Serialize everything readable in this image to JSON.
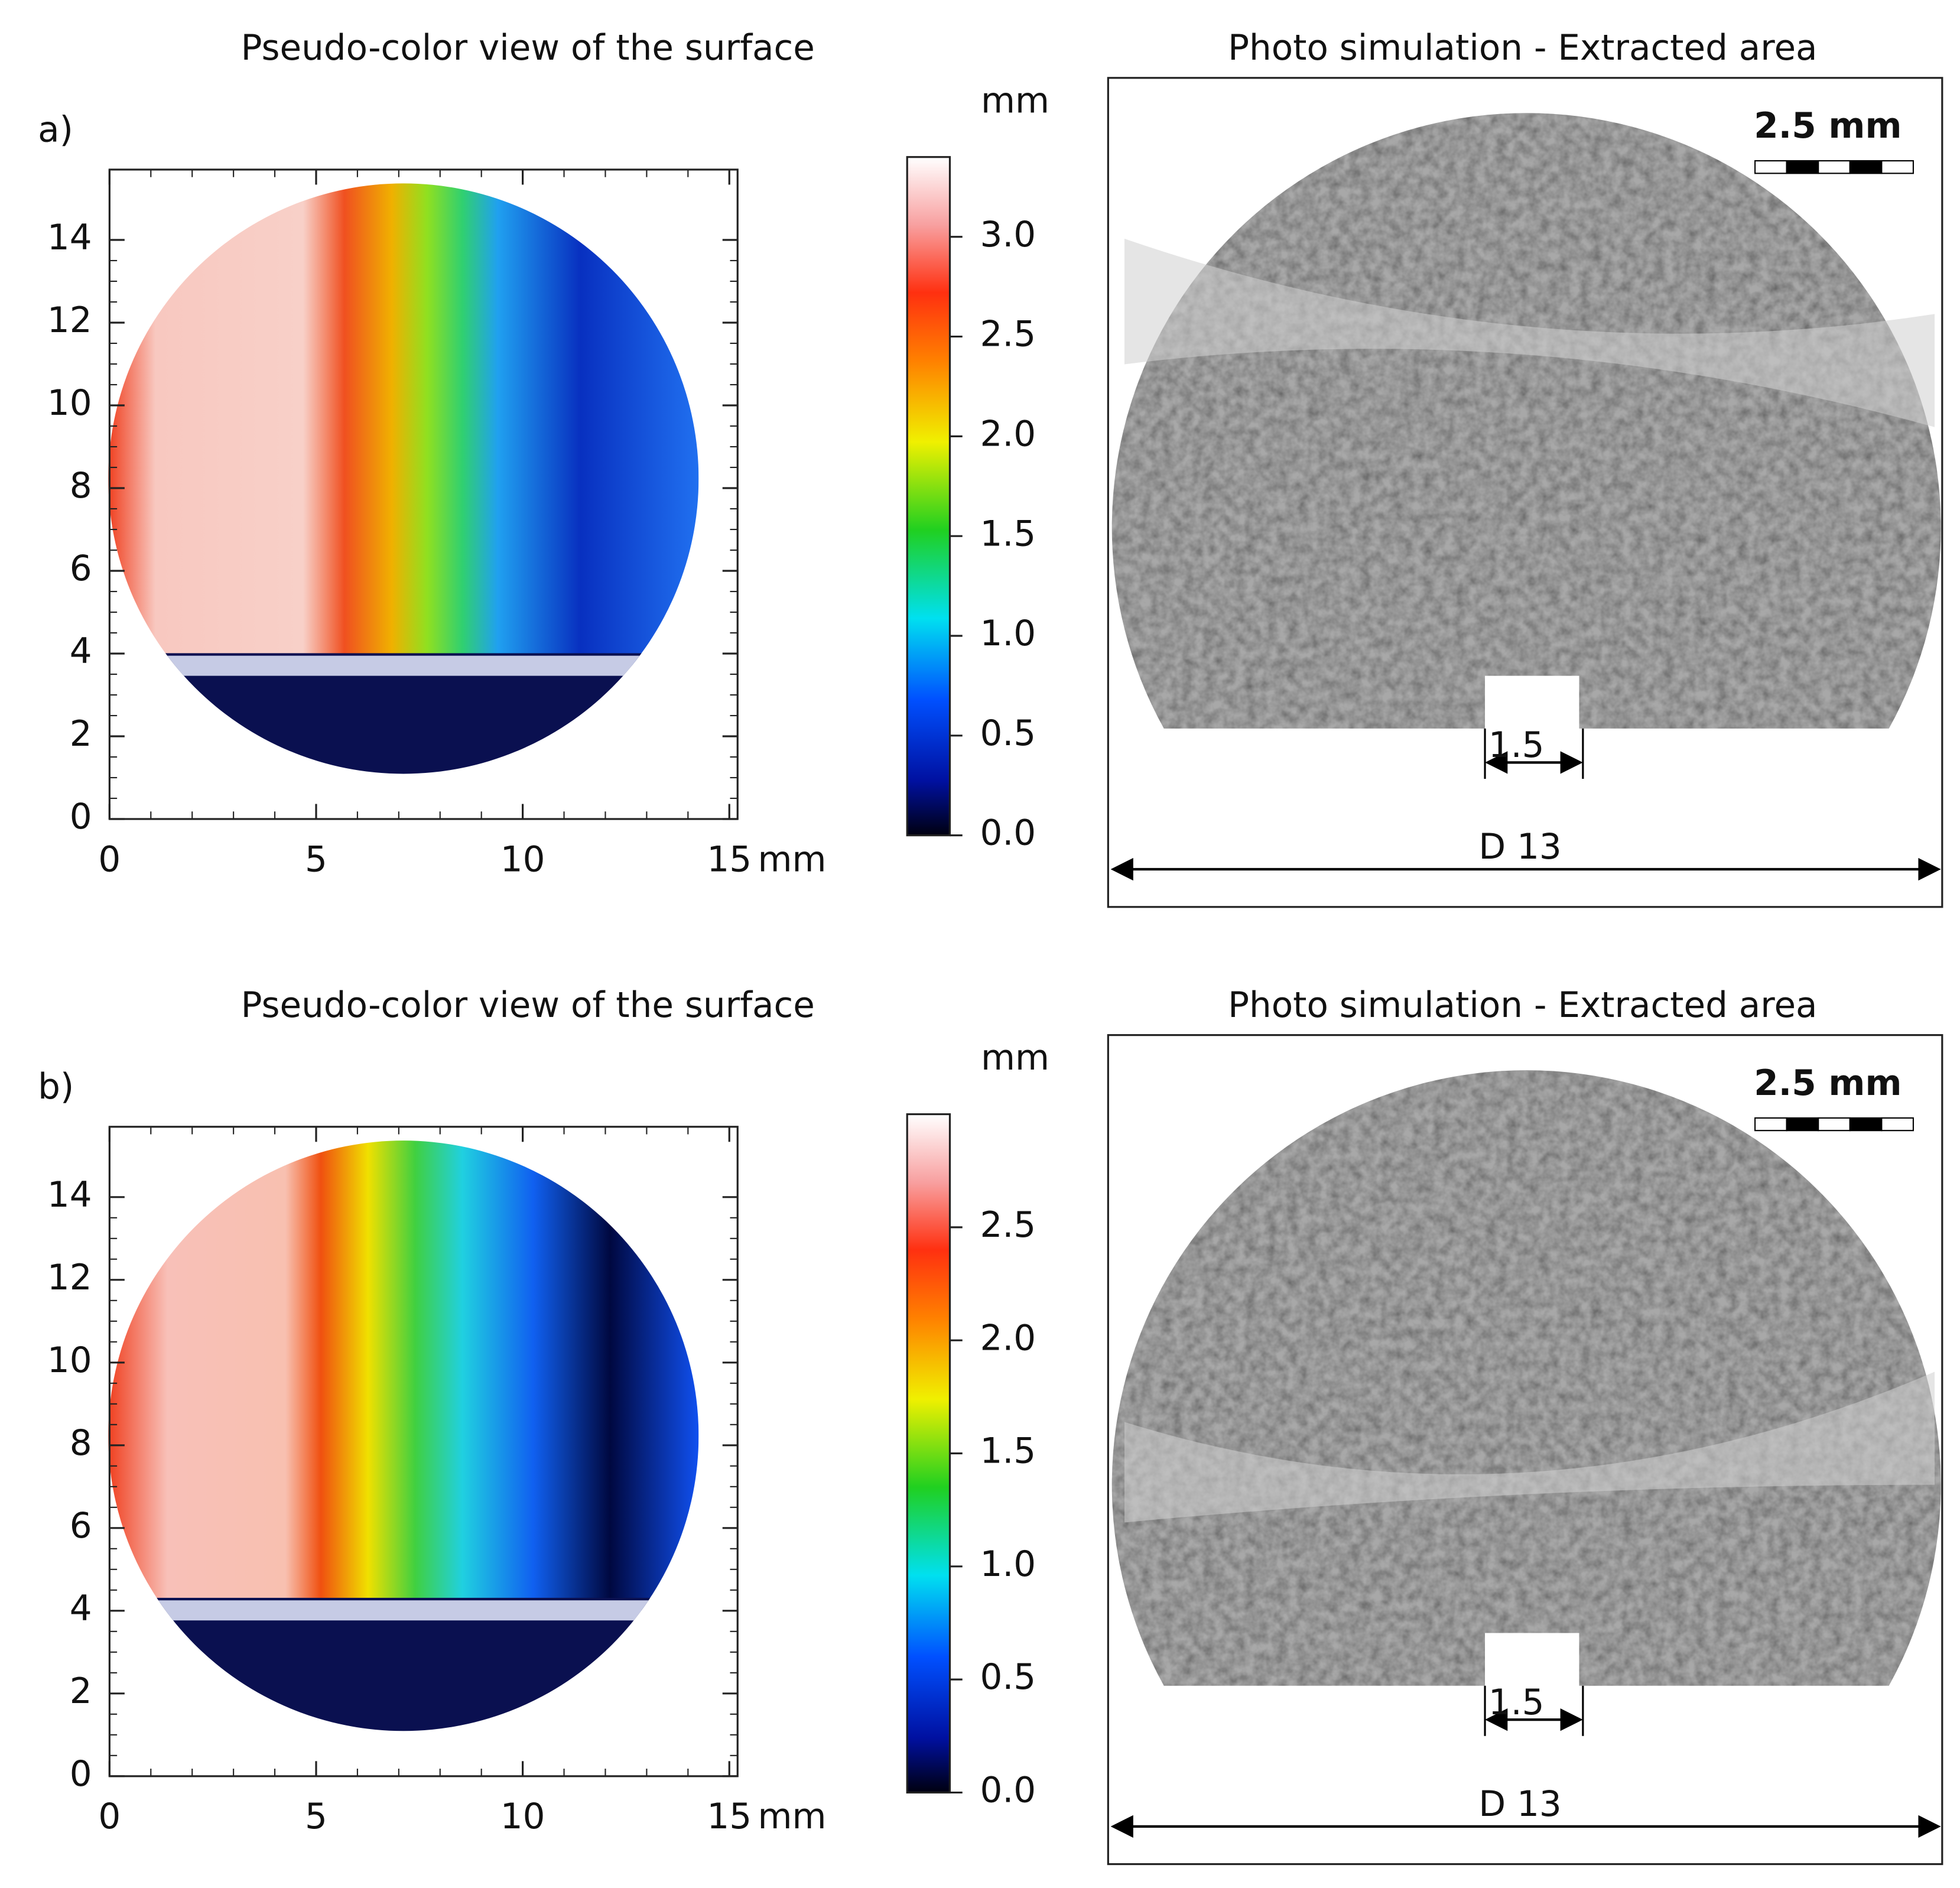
{
  "panels": [
    {
      "label": "a)",
      "surface": {
        "title": "Pseudo-color view of the surface",
        "type": "heatmap",
        "xlim": [
          0,
          15.2
        ],
        "xticks": [
          0,
          5,
          10,
          15
        ],
        "xunit": "mm",
        "ylim": [
          0,
          15.7
        ],
        "yticks": [
          0,
          2,
          4,
          6,
          8,
          10,
          12,
          14
        ],
        "colorbar": {
          "unit": "mm",
          "lim": [
            0,
            3.4
          ],
          "ticks": [
            {
              "value": 0,
              "label": "0.0"
            },
            0.5,
            {
              "value": 1,
              "label": "1.0"
            },
            1.5,
            {
              "value": 2,
              "label": "2.0"
            },
            2.5,
            {
              "value": 3,
              "label": "3.0"
            }
          ]
        }
      },
      "photo": {
        "title": "Photo simulation - Extracted area",
        "scale_label": "2.5 mm",
        "notch_label": "1.5",
        "diameter_label": "D 13"
      }
    },
    {
      "label": "b)",
      "surface": {
        "title": "Pseudo-color view of the surface",
        "type": "heatmap",
        "xlim": [
          0,
          15.2
        ],
        "xticks": [
          0,
          5,
          10,
          15
        ],
        "xunit": "mm",
        "ylim": [
          0,
          15.7
        ],
        "yticks": [
          0,
          2,
          4,
          6,
          8,
          10,
          12,
          14
        ],
        "colorbar": {
          "unit": "mm",
          "lim": [
            0,
            3.0
          ],
          "ticks": [
            {
              "value": 0,
              "label": "0.0"
            },
            0.5,
            {
              "value": 1,
              "label": "1.0"
            },
            1.5,
            {
              "value": 2,
              "label": "2.0"
            },
            2.5
          ]
        }
      },
      "photo": {
        "title": "Photo simulation - Extracted area",
        "scale_label": "2.5 mm",
        "notch_label": "1.5",
        "diameter_label": "D 13"
      }
    }
  ]
}
